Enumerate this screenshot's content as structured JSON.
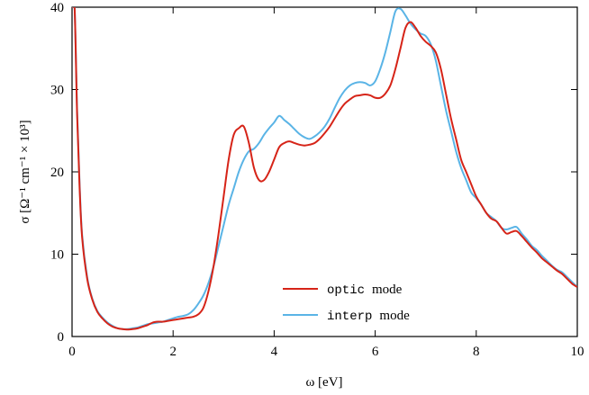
{
  "chart_data": {
    "type": "line",
    "title": "",
    "xlabel": "ω [eV]",
    "ylabel": "σ [Ω⁻¹ cm⁻¹ × 10³]",
    "xlim": [
      0,
      10
    ],
    "ylim": [
      0,
      40
    ],
    "x_ticks": [
      0,
      2,
      4,
      6,
      8,
      10
    ],
    "y_ticks": [
      0,
      10,
      20,
      30,
      40
    ],
    "grid": false,
    "legend_position": "bottom-right",
    "series": [
      {
        "name_code": "optic",
        "name_suffix": "mode",
        "color": "#d62418",
        "x": [
          0.0,
          0.05,
          0.1,
          0.15,
          0.2,
          0.3,
          0.4,
          0.5,
          0.6,
          0.7,
          0.8,
          0.9,
          1.0,
          1.1,
          1.2,
          1.3,
          1.4,
          1.5,
          1.6,
          1.7,
          1.8,
          1.9,
          2.0,
          2.1,
          2.2,
          2.3,
          2.4,
          2.5,
          2.6,
          2.7,
          2.8,
          2.9,
          3.0,
          3.1,
          3.2,
          3.3,
          3.4,
          3.5,
          3.6,
          3.7,
          3.8,
          3.9,
          4.0,
          4.1,
          4.2,
          4.3,
          4.4,
          4.5,
          4.6,
          4.7,
          4.8,
          4.9,
          5.0,
          5.1,
          5.2,
          5.3,
          5.4,
          5.5,
          5.6,
          5.7,
          5.8,
          5.9,
          6.0,
          6.1,
          6.2,
          6.3,
          6.4,
          6.5,
          6.6,
          6.7,
          6.8,
          6.9,
          7.0,
          7.1,
          7.2,
          7.3,
          7.4,
          7.5,
          7.6,
          7.7,
          7.8,
          7.9,
          8.0,
          8.1,
          8.2,
          8.3,
          8.4,
          8.5,
          8.6,
          8.7,
          8.8,
          8.9,
          9.0,
          9.1,
          9.2,
          9.3,
          9.4,
          9.5,
          9.6,
          9.7,
          9.8,
          9.9,
          10.0
        ],
        "y": [
          40.0,
          40.0,
          27.0,
          18.0,
          12.0,
          7.0,
          4.5,
          3.0,
          2.2,
          1.6,
          1.2,
          1.0,
          0.9,
          0.85,
          0.9,
          1.0,
          1.2,
          1.4,
          1.7,
          1.8,
          1.8,
          1.9,
          2.0,
          2.1,
          2.2,
          2.3,
          2.4,
          2.7,
          3.5,
          5.5,
          8.5,
          12.5,
          17.0,
          21.5,
          24.5,
          25.3,
          25.5,
          23.5,
          20.5,
          19.0,
          19.0,
          20.0,
          21.5,
          23.0,
          23.5,
          23.7,
          23.5,
          23.3,
          23.2,
          23.3,
          23.5,
          24.0,
          24.7,
          25.5,
          26.5,
          27.5,
          28.3,
          28.8,
          29.2,
          29.3,
          29.4,
          29.3,
          29.0,
          29.0,
          29.5,
          30.5,
          32.5,
          35.0,
          37.5,
          38.2,
          37.5,
          36.5,
          35.8,
          35.3,
          34.5,
          32.5,
          29.5,
          26.5,
          24.0,
          21.5,
          20.0,
          18.5,
          17.0,
          16.0,
          15.0,
          14.3,
          14.0,
          13.2,
          12.5,
          12.7,
          12.8,
          12.2,
          11.5,
          10.8,
          10.2,
          9.5,
          9.0,
          8.5,
          8.0,
          7.6,
          7.0,
          6.4,
          6.0
        ]
      },
      {
        "name_code": "interp",
        "name_suffix": "mode",
        "color": "#5ab4e6",
        "x": [
          0.0,
          0.05,
          0.1,
          0.15,
          0.2,
          0.3,
          0.4,
          0.5,
          0.6,
          0.7,
          0.8,
          0.9,
          1.0,
          1.1,
          1.2,
          1.3,
          1.4,
          1.5,
          1.6,
          1.7,
          1.8,
          1.9,
          2.0,
          2.1,
          2.2,
          2.3,
          2.4,
          2.5,
          2.6,
          2.7,
          2.8,
          2.9,
          3.0,
          3.1,
          3.2,
          3.3,
          3.4,
          3.5,
          3.6,
          3.7,
          3.8,
          3.9,
          4.0,
          4.1,
          4.2,
          4.3,
          4.4,
          4.5,
          4.6,
          4.7,
          4.8,
          4.9,
          5.0,
          5.1,
          5.2,
          5.3,
          5.4,
          5.5,
          5.6,
          5.7,
          5.8,
          5.9,
          6.0,
          6.1,
          6.2,
          6.3,
          6.4,
          6.5,
          6.6,
          6.7,
          6.8,
          6.9,
          7.0,
          7.1,
          7.2,
          7.3,
          7.4,
          7.5,
          7.6,
          7.7,
          7.8,
          7.9,
          8.0,
          8.1,
          8.2,
          8.3,
          8.4,
          8.5,
          8.6,
          8.7,
          8.8,
          8.9,
          9.0,
          9.1,
          9.2,
          9.3,
          9.4,
          9.5,
          9.6,
          9.7,
          9.8,
          9.9,
          10.0
        ],
        "y": [
          40.0,
          40.0,
          27.5,
          18.5,
          12.3,
          7.2,
          4.6,
          3.1,
          2.3,
          1.7,
          1.3,
          1.0,
          0.9,
          0.9,
          1.0,
          1.1,
          1.3,
          1.5,
          1.6,
          1.7,
          1.8,
          2.0,
          2.2,
          2.4,
          2.5,
          2.7,
          3.2,
          4.0,
          5.0,
          6.5,
          8.5,
          11.0,
          13.5,
          16.0,
          18.0,
          20.0,
          21.5,
          22.5,
          22.8,
          23.5,
          24.5,
          25.3,
          26.0,
          26.8,
          26.3,
          25.8,
          25.2,
          24.6,
          24.2,
          24.0,
          24.3,
          24.8,
          25.5,
          26.5,
          27.8,
          29.0,
          29.9,
          30.5,
          30.8,
          30.9,
          30.8,
          30.5,
          31.0,
          32.5,
          34.5,
          37.0,
          39.5,
          39.8,
          39.0,
          38.0,
          37.3,
          36.8,
          36.5,
          35.5,
          33.5,
          30.5,
          27.5,
          25.0,
          22.5,
          20.5,
          19.0,
          17.5,
          16.8,
          16.0,
          15.0,
          14.5,
          14.0,
          13.2,
          13.0,
          13.2,
          13.3,
          12.5,
          11.8,
          11.0,
          10.5,
          9.8,
          9.2,
          8.6,
          8.1,
          7.8,
          7.2,
          6.6,
          6.0
        ]
      }
    ]
  }
}
